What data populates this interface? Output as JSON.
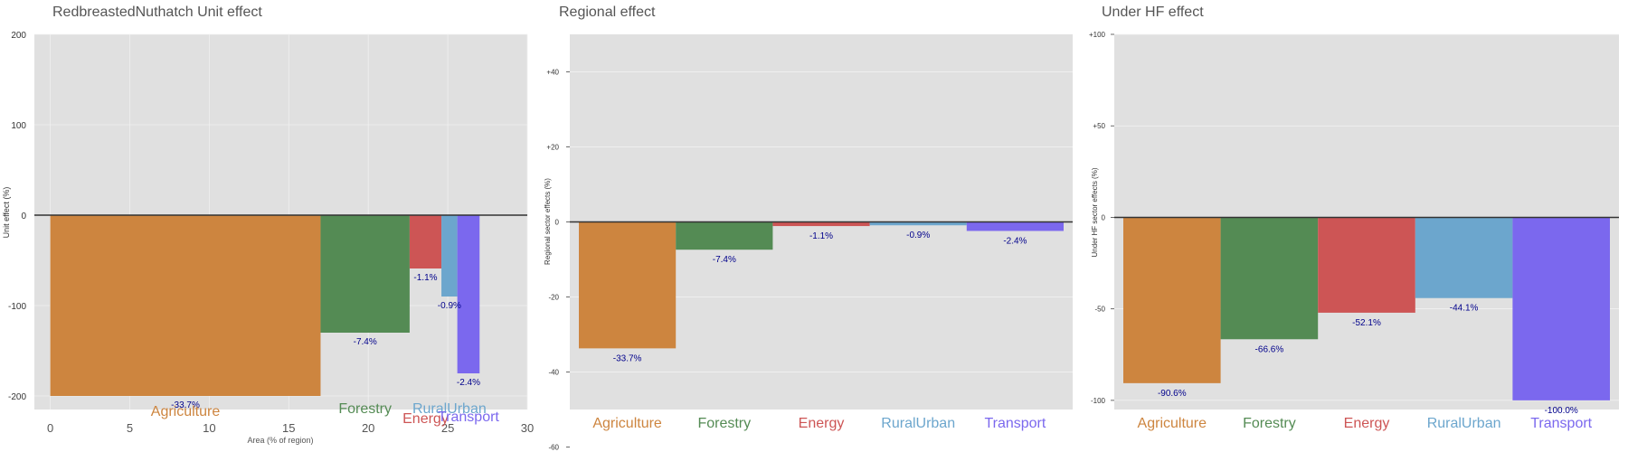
{
  "chart_data": [
    {
      "type": "bar",
      "variant": "variable-width",
      "title": "RedbreastedNuthatch Unit effect",
      "xlabel": "Area (% of region)",
      "ylabel": "Unit effect (%)",
      "xlim": [
        -1,
        30
      ],
      "ylim": [
        -215,
        200
      ],
      "xticks": [
        0,
        5,
        10,
        15,
        20,
        25,
        30
      ],
      "yticks": [
        -200,
        -100,
        0,
        100,
        200
      ],
      "ytick_labels": [
        "-200",
        "-100",
        "0",
        "100",
        "200"
      ],
      "grid": true,
      "bars": [
        {
          "category": "Agriculture",
          "x_start": 0,
          "width": 17.0,
          "value": -200,
          "label": "-33.7%",
          "color": "#CD853F"
        },
        {
          "category": "Forestry",
          "x_start": 17.0,
          "width": 5.6,
          "value": -130,
          "label": "-7.4%",
          "color": "#548B54"
        },
        {
          "category": "Energy",
          "x_start": 22.6,
          "width": 2.0,
          "value": -59,
          "label": "-1.1%",
          "color": "#CD5555"
        },
        {
          "category": "RuralUrban",
          "x_start": 24.6,
          "width": 1.0,
          "value": -90,
          "label": "-0.9%",
          "color": "#6CA6CD"
        },
        {
          "category": "Transport",
          "x_start": 25.6,
          "width": 1.4,
          "value": -175,
          "label": "-2.4%",
          "color": "#7B68EE"
        }
      ]
    },
    {
      "type": "bar",
      "title": "Regional effect",
      "xlabel": "",
      "ylabel": "Regional sector effects (%)",
      "ylim": [
        -50,
        50
      ],
      "yticks": [
        -60,
        -40,
        -20,
        0,
        20,
        40
      ],
      "ytick_labels": [
        "-60",
        "-40",
        "-20",
        "0",
        "+20",
        "+40"
      ],
      "grid": true,
      "categories": [
        "Agriculture",
        "Forestry",
        "Energy",
        "RuralUrban",
        "Transport"
      ],
      "values": [
        -33.7,
        -7.4,
        -1.1,
        -0.9,
        -2.4
      ],
      "labels": [
        "-33.7%",
        "-7.4%",
        "-1.1%",
        "-0.9%",
        "-2.4%"
      ],
      "colors": [
        "#CD853F",
        "#548B54",
        "#CD5555",
        "#6CA6CD",
        "#7B68EE"
      ]
    },
    {
      "type": "bar",
      "title": "Under HF effect",
      "xlabel": "",
      "ylabel": "Under HF sector effects (%)",
      "ylim": [
        -105,
        100
      ],
      "yticks": [
        -100,
        -50,
        0,
        50,
        100
      ],
      "ytick_labels": [
        "-100",
        "-50",
        "0",
        "+50",
        "+100"
      ],
      "grid": true,
      "categories": [
        "Agriculture",
        "Forestry",
        "Energy",
        "RuralUrban",
        "Transport"
      ],
      "values": [
        -90.6,
        -66.6,
        -52.1,
        -44.1,
        -100.0
      ],
      "labels": [
        "-90.6%",
        "-66.6%",
        "-52.1%",
        "-44.1%",
        "-100.0%"
      ],
      "colors": [
        "#CD853F",
        "#548B54",
        "#CD5555",
        "#6CA6CD",
        "#7B68EE"
      ]
    }
  ]
}
